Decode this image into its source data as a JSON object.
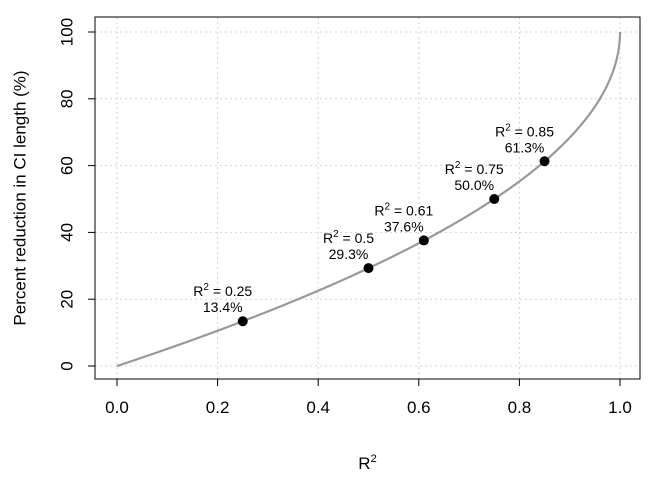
{
  "chart_data": {
    "type": "line",
    "title": "",
    "xlabel": "R",
    "xlabel_superscript": "2",
    "ylabel": "Percent reduction in CI length (%)",
    "xlim": [
      0.0,
      1.0
    ],
    "ylim": [
      0,
      100
    ],
    "x_ticks": [
      "0.0",
      "0.2",
      "0.4",
      "0.6",
      "0.8",
      "1.0"
    ],
    "y_ticks": [
      "0",
      "20",
      "40",
      "60",
      "80",
      "100"
    ],
    "grid": true,
    "grid_style": "dotted",
    "curve": {
      "formula": "100 * (1 - sqrt(1 - R^2))",
      "color": "#999999"
    },
    "points": [
      {
        "x": 0.25,
        "y": 13.4,
        "label_r2": "R",
        "label_r2_sup": "2",
        "label_r2_value": " = 0.25",
        "label_pct": "13.4%"
      },
      {
        "x": 0.5,
        "y": 29.3,
        "label_r2": "R",
        "label_r2_sup": "2",
        "label_r2_value": " = 0.5",
        "label_pct": "29.3%"
      },
      {
        "x": 0.61,
        "y": 37.6,
        "label_r2": "R",
        "label_r2_sup": "2",
        "label_r2_value": " = 0.61",
        "label_pct": "37.6%"
      },
      {
        "x": 0.75,
        "y": 50.0,
        "label_r2": "R",
        "label_r2_sup": "2",
        "label_r2_value": " = 0.75",
        "label_pct": "50.0%"
      },
      {
        "x": 0.85,
        "y": 61.3,
        "label_r2": "R",
        "label_r2_sup": "2",
        "label_r2_value": " = 0.85",
        "label_pct": "61.3%"
      }
    ],
    "point_color": "#000000"
  }
}
